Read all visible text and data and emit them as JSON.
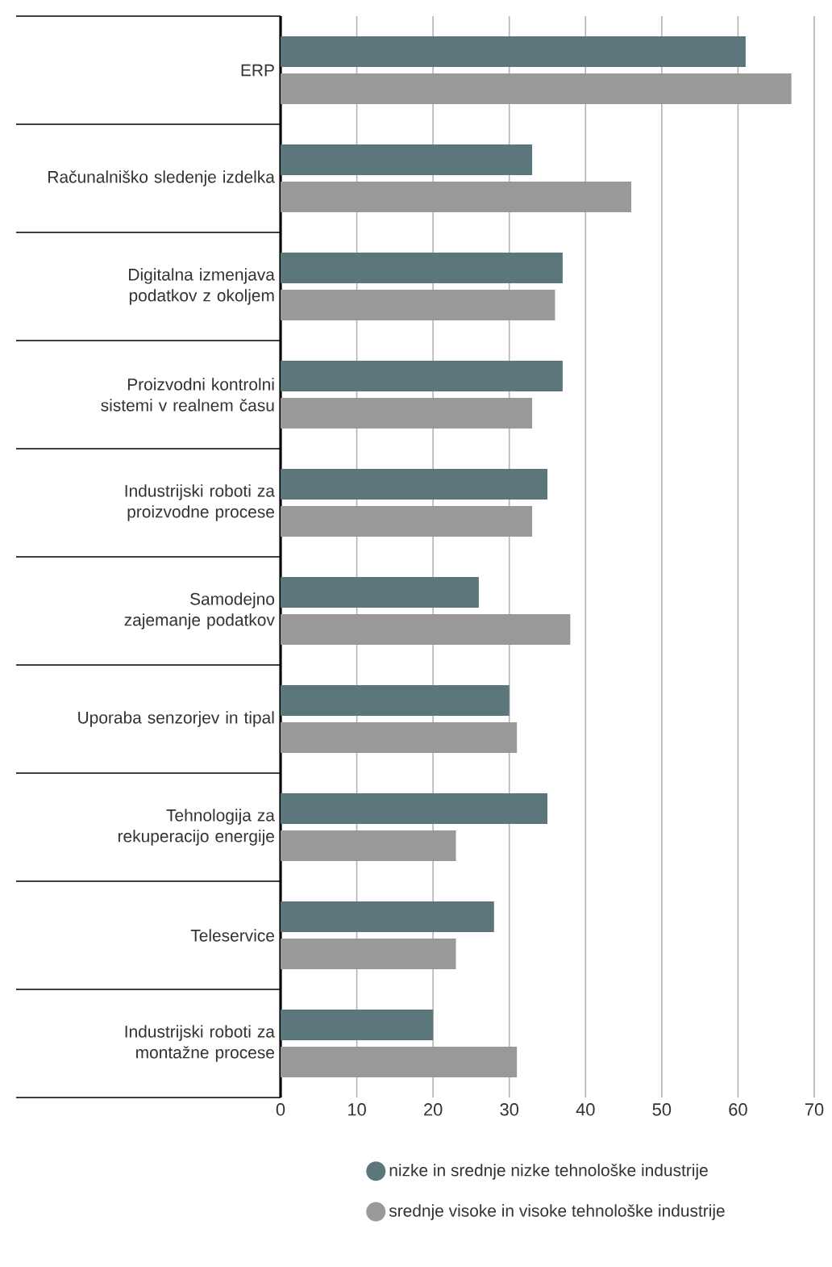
{
  "chart_data": {
    "type": "bar",
    "orientation": "horizontal",
    "categories": [
      "ERP",
      "Računalniško sledenje izdelka",
      "Digitalna izmenjava podatkov z okoljem",
      "Proizvodni kontrolni sistemi v realnem času",
      "Industrijski roboti za proizvodne procese",
      "Samodejno zajemanje podatkov",
      "Uporaba senzorjev in tipal",
      "Tehnologija za rekuperacijo energije",
      "Teleservice",
      "Industrijski roboti za montažne procese"
    ],
    "series": [
      {
        "name": "nizke in srednje nizke tehnološke industrije",
        "color": "#5b777c",
        "values": [
          61,
          33,
          37,
          37,
          35,
          26,
          30,
          35,
          28,
          20
        ]
      },
      {
        "name": "srednje visoke in visoke tehnološke industrije",
        "color": "#999999",
        "values": [
          67,
          46,
          36,
          33,
          33,
          38,
          31,
          23,
          23,
          31
        ]
      }
    ],
    "xlim": [
      0,
      70
    ],
    "xticks": [
      0,
      10,
      20,
      30,
      40,
      50,
      60,
      70
    ],
    "grid": "x",
    "legend": "bottom"
  }
}
